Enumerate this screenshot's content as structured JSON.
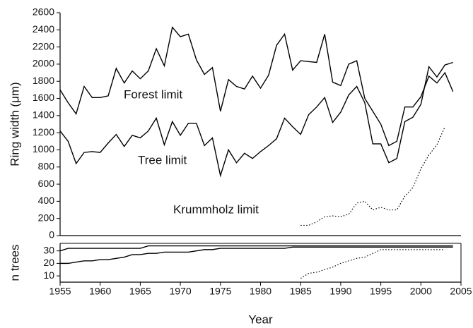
{
  "chart_data": [
    {
      "type": "line",
      "ylabel": "Ring width (μm)",
      "x": [
        1955,
        1956,
        1957,
        1958,
        1959,
        1960,
        1961,
        1962,
        1963,
        1964,
        1965,
        1966,
        1967,
        1968,
        1969,
        1970,
        1971,
        1972,
        1973,
        1974,
        1975,
        1976,
        1977,
        1978,
        1979,
        1980,
        1981,
        1982,
        1983,
        1984,
        1985,
        1986,
        1987,
        1988,
        1989,
        1990,
        1991,
        1992,
        1993,
        1994,
        1995,
        1996,
        1997,
        1998,
        1999,
        2000,
        2001,
        2002,
        2003,
        2004
      ],
      "series": [
        {
          "name": "Forest limit",
          "color": "#000000",
          "linestyle": "solid",
          "values": [
            1700,
            1550,
            1420,
            1740,
            1610,
            1610,
            1630,
            1950,
            1780,
            1920,
            1830,
            1920,
            2180,
            1980,
            2430,
            2320,
            2350,
            2050,
            1880,
            1960,
            1450,
            1820,
            1740,
            1710,
            1860,
            1720,
            1870,
            2220,
            2350,
            1930,
            2040,
            2030,
            2020,
            2350,
            1790,
            1750,
            2000,
            2040,
            1600,
            1450,
            1300,
            1050,
            1100,
            1500,
            1500,
            1620,
            1860,
            1780,
            1900,
            1680
          ]
        },
        {
          "name": "Tree limit",
          "color": "#000000",
          "linestyle": "solid",
          "values": [
            1220,
            1100,
            840,
            970,
            980,
            970,
            1080,
            1180,
            1040,
            1170,
            1140,
            1220,
            1370,
            1060,
            1330,
            1170,
            1310,
            1310,
            1050,
            1140,
            700,
            1000,
            850,
            960,
            900,
            980,
            1050,
            1130,
            1370,
            1270,
            1180,
            1410,
            1500,
            1610,
            1320,
            1440,
            1640,
            1740,
            1550,
            1070,
            1070,
            850,
            900,
            1330,
            1380,
            1530,
            1970,
            1850,
            1990,
            2020
          ]
        },
        {
          "name": "Krummholz limit",
          "color": "#000000",
          "linestyle": "dotted",
          "values": [
            null,
            null,
            null,
            null,
            null,
            null,
            null,
            null,
            null,
            null,
            null,
            null,
            null,
            null,
            null,
            null,
            null,
            null,
            null,
            null,
            null,
            null,
            null,
            null,
            null,
            null,
            null,
            null,
            null,
            null,
            120,
            120,
            160,
            220,
            230,
            220,
            250,
            380,
            400,
            300,
            330,
            300,
            300,
            460,
            560,
            780,
            940,
            1060,
            1270,
            null
          ]
        }
      ],
      "xlim": [
        1955,
        2005
      ],
      "ylim": [
        0,
        2600
      ],
      "yticks": [
        0,
        200,
        400,
        600,
        800,
        1000,
        1200,
        1400,
        1600,
        1800,
        2000,
        2200,
        2400,
        2600
      ]
    },
    {
      "type": "line",
      "ylabel": "n trees",
      "xlabel": "Year",
      "x": [
        1955,
        1956,
        1957,
        1958,
        1959,
        1960,
        1961,
        1962,
        1963,
        1964,
        1965,
        1966,
        1967,
        1968,
        1969,
        1970,
        1971,
        1972,
        1973,
        1974,
        1975,
        1976,
        1977,
        1978,
        1979,
        1980,
        1981,
        1982,
        1983,
        1984,
        1985,
        1986,
        1987,
        1988,
        1989,
        1990,
        1991,
        1992,
        1993,
        1994,
        1995,
        1996,
        1997,
        1998,
        1999,
        2000,
        2001,
        2002,
        2003,
        2004
      ],
      "series": [
        {
          "color": "#000000",
          "linestyle": "solid",
          "values": [
            30,
            32,
            32,
            32,
            32,
            32,
            32,
            32,
            32,
            32,
            32,
            34,
            34,
            34,
            34,
            34,
            34,
            34,
            34,
            34,
            34,
            34,
            34,
            34,
            34,
            34,
            34,
            34,
            34,
            34,
            34,
            34,
            34,
            34,
            34,
            34,
            34,
            34,
            34,
            34,
            34,
            34,
            34,
            34,
            34,
            34,
            34,
            34,
            34,
            34
          ]
        },
        {
          "color": "#000000",
          "linestyle": "solid",
          "values": [
            20,
            20,
            21,
            22,
            22,
            23,
            23,
            24,
            25,
            27,
            27,
            28,
            28,
            29,
            29,
            29,
            29,
            30,
            31,
            31,
            32,
            32,
            32,
            32,
            32,
            32,
            32,
            32,
            32,
            33,
            33,
            33,
            33,
            33,
            33,
            33,
            33,
            33,
            33,
            33,
            33,
            33,
            33,
            33,
            33,
            33,
            33,
            33,
            33,
            33
          ]
        },
        {
          "color": "#000000",
          "linestyle": "dotted",
          "values": [
            null,
            null,
            null,
            null,
            null,
            null,
            null,
            null,
            null,
            null,
            null,
            null,
            null,
            null,
            null,
            null,
            null,
            null,
            null,
            null,
            null,
            null,
            null,
            null,
            null,
            null,
            null,
            null,
            null,
            null,
            8,
            12,
            13,
            15,
            17,
            20,
            22,
            24,
            25,
            28,
            31,
            31,
            31,
            31,
            31,
            31,
            31,
            31,
            31,
            null
          ]
        }
      ],
      "xlim": [
        1955,
        2005
      ],
      "ylim": [
        5,
        36
      ],
      "yticks": [
        10,
        20,
        30
      ],
      "xticks": [
        1955,
        1960,
        1965,
        1970,
        1975,
        1980,
        1985,
        1990,
        1995,
        2000,
        2005
      ]
    }
  ]
}
